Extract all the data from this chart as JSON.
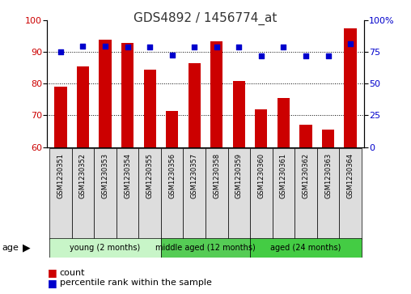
{
  "title": "GDS4892 / 1456774_at",
  "samples": [
    "GSM1230351",
    "GSM1230352",
    "GSM1230353",
    "GSM1230354",
    "GSM1230355",
    "GSM1230356",
    "GSM1230357",
    "GSM1230358",
    "GSM1230359",
    "GSM1230360",
    "GSM1230361",
    "GSM1230362",
    "GSM1230363",
    "GSM1230364"
  ],
  "counts": [
    79,
    85.5,
    94,
    93,
    84.5,
    71.5,
    86.5,
    93.5,
    81,
    72,
    75.5,
    67,
    65.5,
    97.5
  ],
  "percentile_ranks": [
    75,
    80,
    80,
    79,
    79,
    73,
    79,
    79,
    79,
    72,
    79,
    72,
    72,
    82
  ],
  "ylim_left": [
    60,
    100
  ],
  "ylim_right": [
    0,
    100
  ],
  "yticks_left": [
    60,
    70,
    80,
    90,
    100
  ],
  "yticks_right": [
    0,
    25,
    50,
    75,
    100
  ],
  "ytick_right_labels": [
    "0",
    "25",
    "50",
    "75",
    "100%"
  ],
  "bar_color": "#cc0000",
  "dot_color": "#0000cc",
  "groups": [
    {
      "label": "young (2 months)",
      "start": 0,
      "end": 5,
      "color": "#c8f5c8"
    },
    {
      "label": "middle aged (12 months)",
      "start": 5,
      "end": 9,
      "color": "#55cc55"
    },
    {
      "label": "aged (24 months)",
      "start": 9,
      "end": 14,
      "color": "#44cc44"
    }
  ],
  "group_label": "age",
  "legend_items": [
    {
      "label": "count",
      "color": "#cc0000"
    },
    {
      "label": "percentile rank within the sample",
      "color": "#0000cc"
    }
  ],
  "title_fontsize": 11,
  "tick_fontsize": 8,
  "sample_fontsize": 6,
  "group_fontsize": 7,
  "legend_fontsize": 8
}
